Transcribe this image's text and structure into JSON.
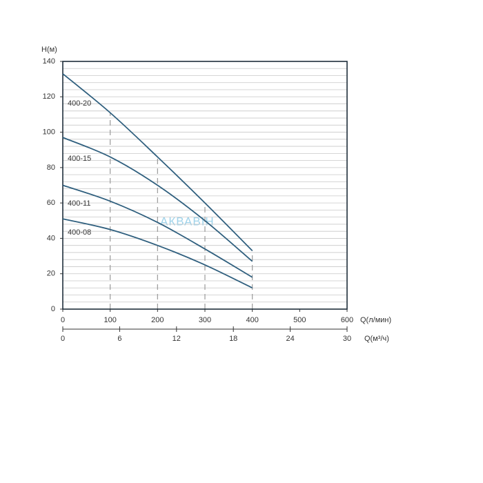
{
  "chart_data": {
    "type": "line",
    "y_label": "H(м)",
    "x_label": "Q(л/мин)",
    "x2_label": "Q(м³/ч)",
    "x": [
      0,
      100,
      200,
      300,
      400
    ],
    "series": [
      {
        "name": "400-20",
        "color": "#2f5f7e",
        "values": [
          133,
          111,
          86,
          60,
          33
        ]
      },
      {
        "name": "400-15",
        "color": "#2f5f7e",
        "values": [
          97,
          86,
          70,
          50,
          27
        ]
      },
      {
        "name": "400-11",
        "color": "#2f5f7e",
        "values": [
          70,
          61,
          49,
          34,
          18
        ]
      },
      {
        "name": "400-08",
        "color": "#2f5f7e",
        "values": [
          51,
          45,
          36,
          25,
          12
        ]
      }
    ],
    "xlim": [
      0,
      600
    ],
    "xticks": [
      0,
      100,
      200,
      300,
      400,
      500,
      600
    ],
    "x2lim": [
      0,
      30
    ],
    "x2ticks": [
      0,
      6,
      12,
      18,
      24,
      30
    ],
    "ylim": [
      0,
      140
    ],
    "yticks": [
      0,
      20,
      40,
      60,
      80,
      100,
      120,
      140
    ],
    "minor_grid_step": 4,
    "grid": true,
    "watermark": "АКВАВІН"
  }
}
